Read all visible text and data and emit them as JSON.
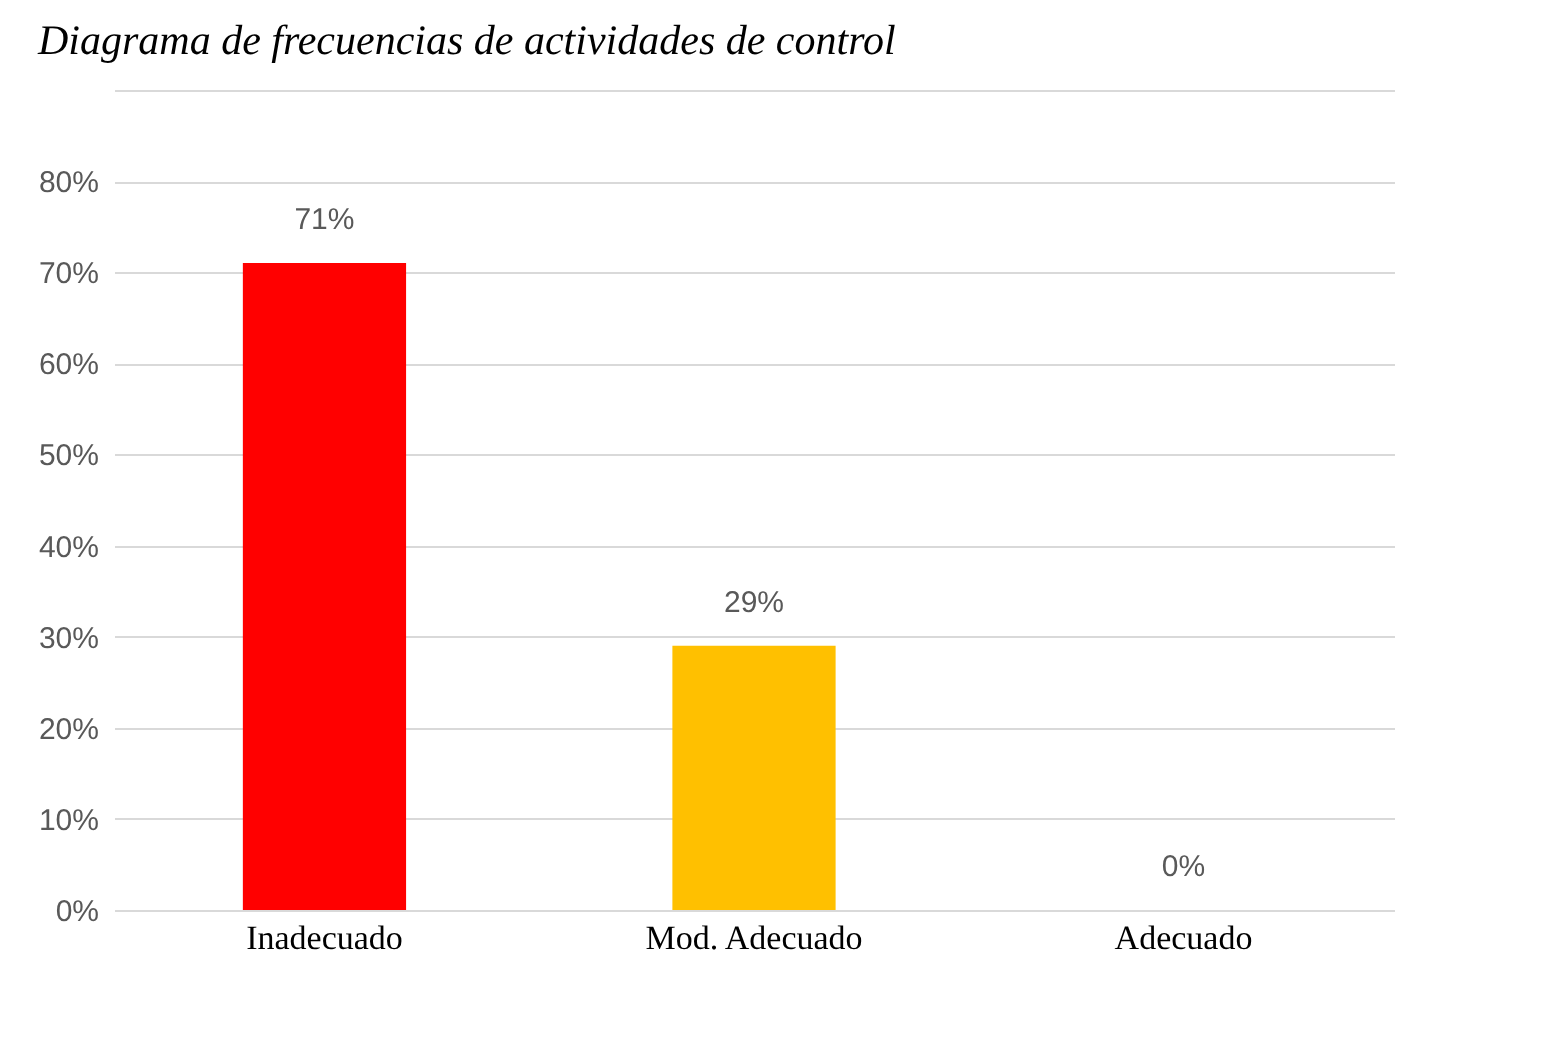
{
  "chart_data": {
    "type": "bar",
    "title": "Diagrama de frecuencias de actividades de control",
    "categories": [
      "Inadecuado",
      "Mod. Adecuado",
      "Adecuado"
    ],
    "values": [
      71,
      29,
      0
    ],
    "colors": [
      "#ff0000",
      "#ffc000",
      "#375623"
    ],
    "value_labels": [
      "71%",
      "29%",
      "0%"
    ],
    "ylim": [
      0,
      90
    ],
    "yticks": [
      {
        "value": 0,
        "label": "0%"
      },
      {
        "value": 10,
        "label": "10%"
      },
      {
        "value": 20,
        "label": "20%"
      },
      {
        "value": 30,
        "label": "30%"
      },
      {
        "value": 40,
        "label": "40%"
      },
      {
        "value": 50,
        "label": "50%"
      },
      {
        "value": 60,
        "label": "60%"
      },
      {
        "value": 70,
        "label": "70%"
      },
      {
        "value": 80,
        "label": "80%"
      },
      {
        "value": 90,
        "label": null
      }
    ],
    "grid": "y"
  }
}
